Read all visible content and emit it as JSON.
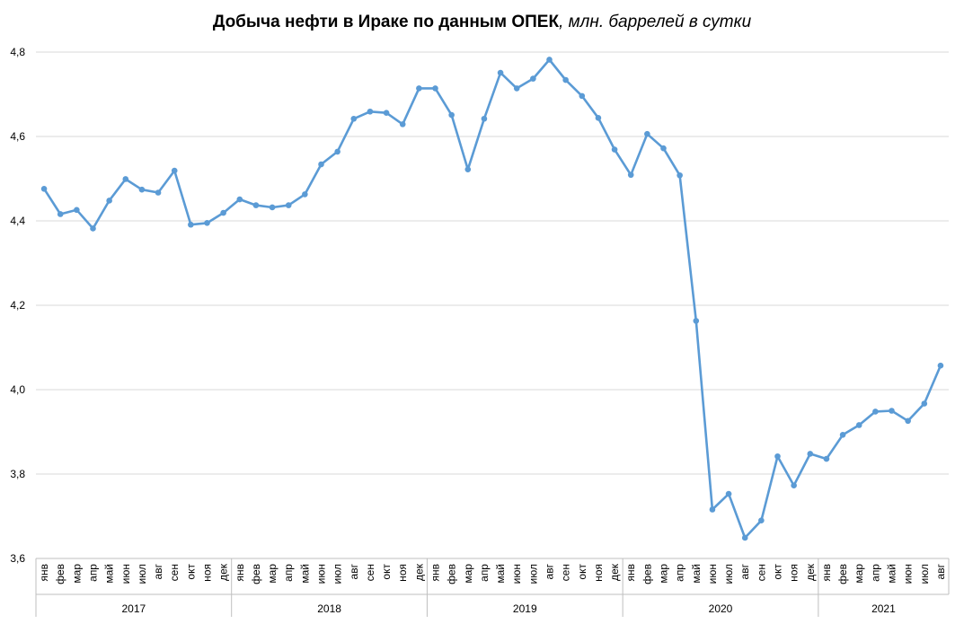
{
  "chart_data": {
    "type": "line",
    "title": "Добыча нефти в Ираке по данным ОПЕК",
    "subtitle": "млн. баррелей в сутки",
    "xlabel": "",
    "ylabel": "",
    "ylim": [
      3.6,
      4.8
    ],
    "yticks": [
      "3,6",
      "3,8",
      "4,0",
      "4,2",
      "4,4",
      "4,6",
      "4,8"
    ],
    "grid": true,
    "color": "#5B9BD5",
    "years": [
      {
        "label": "2017",
        "months": [
          "янв",
          "фев",
          "мар",
          "апр",
          "май",
          "июн",
          "июл",
          "авг",
          "сен",
          "окт",
          "ноя",
          "дек"
        ]
      },
      {
        "label": "2018",
        "months": [
          "янв",
          "фев",
          "мар",
          "апр",
          "май",
          "июн",
          "июл",
          "авг",
          "сен",
          "окт",
          "ноя",
          "дек"
        ]
      },
      {
        "label": "2019",
        "months": [
          "янв",
          "фев",
          "мар",
          "апр",
          "май",
          "июн",
          "июл",
          "авг",
          "сен",
          "окт",
          "ноя",
          "дек"
        ]
      },
      {
        "label": "2020",
        "months": [
          "янв",
          "фев",
          "мар",
          "апр",
          "май",
          "июн",
          "июл",
          "авг",
          "сен",
          "окт",
          "ноя",
          "дек"
        ]
      },
      {
        "label": "2021",
        "months": [
          "янв",
          "фев",
          "мар",
          "апр",
          "май",
          "июн",
          "июл",
          "авг"
        ]
      }
    ],
    "series": [
      {
        "values": [
          4.476,
          4.416,
          4.426,
          4.382,
          4.448,
          4.499,
          4.474,
          4.467,
          4.519,
          4.391,
          4.395,
          4.419,
          4.451,
          4.437,
          4.432,
          4.437,
          4.463,
          4.534,
          4.564,
          4.642,
          4.659,
          4.656,
          4.629,
          4.714,
          4.714,
          4.651,
          4.522,
          4.642,
          4.751,
          4.714,
          4.737,
          4.782,
          4.734,
          4.696,
          4.644,
          4.569,
          4.509,
          4.606,
          4.572,
          4.508,
          4.163,
          3.716,
          3.753,
          3.649,
          3.69,
          3.842,
          3.773,
          3.848,
          3.836,
          3.893,
          3.916,
          3.948,
          3.95,
          3.926,
          3.967,
          4.057
        ]
      }
    ]
  }
}
